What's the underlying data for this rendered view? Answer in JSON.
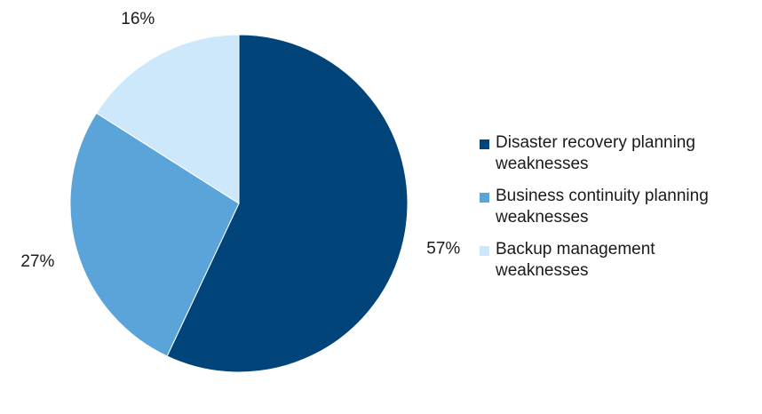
{
  "chart_data": {
    "type": "pie",
    "title": "",
    "slices": [
      {
        "name": "Disaster recovery planning weaknesses",
        "value": 57,
        "label": "57%",
        "color": "#004479"
      },
      {
        "name": "Business continuity planning weaknesses",
        "value": 27,
        "label": "27%",
        "color": "#5ba4d9"
      },
      {
        "name": "Backup management weaknesses",
        "value": 16,
        "label": "16%",
        "color": "#cde8fb"
      }
    ],
    "start_angle": "12 o'clock",
    "direction": "clockwise",
    "legend_position": "right"
  },
  "legend": {
    "items": [
      {
        "line1": "Disaster recovery planning",
        "line2": "weaknesses",
        "color": "#004479"
      },
      {
        "line1": "Business continuity planning",
        "line2": "weaknesses",
        "color": "#5ba4d9"
      },
      {
        "line1": "Backup management",
        "line2": "weaknesses",
        "color": "#cde8fb"
      }
    ]
  }
}
